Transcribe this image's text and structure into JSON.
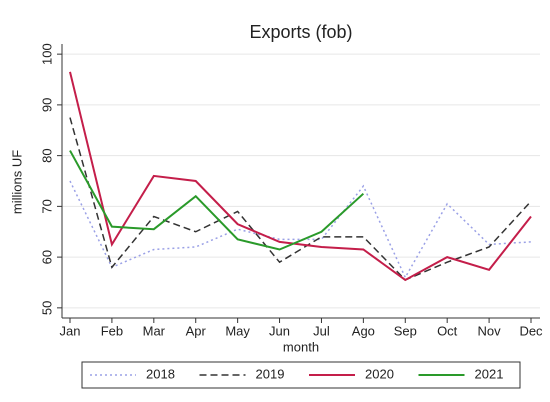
{
  "chart_data": {
    "type": "line",
    "title": "Exports (fob)",
    "x_label": "month",
    "y_label": "millions UF",
    "categories": [
      "Jan",
      "Feb",
      "Mar",
      "Apr",
      "May",
      "Jun",
      "Jul",
      "Ago",
      "Sep",
      "Oct",
      "Nov",
      "Dec"
    ],
    "ylim": [
      48,
      102
    ],
    "yticks": [
      50,
      60,
      70,
      80,
      90,
      100
    ],
    "grid": true,
    "legend": "bottom",
    "series": [
      {
        "name": "2018",
        "color": "#9aa0e6",
        "dash": "dotted",
        "values": [
          75,
          58,
          61.5,
          62,
          65.5,
          63.5,
          63.5,
          74,
          56,
          70.5,
          62.5,
          63
        ]
      },
      {
        "name": "2019",
        "color": "#333333",
        "dash": "dashed",
        "values": [
          87.5,
          58,
          68,
          65,
          69,
          59,
          64,
          64,
          55.5,
          59,
          62,
          71
        ]
      },
      {
        "name": "2020",
        "color": "#c41e4a",
        "dash": "solid",
        "values": [
          96.5,
          62.5,
          76,
          75,
          66.5,
          63,
          62,
          61.5,
          55.5,
          60,
          57.5,
          68
        ]
      },
      {
        "name": "2021",
        "color": "#2a9a2a",
        "dash": "solid",
        "values": [
          81,
          66,
          65.5,
          72,
          63.5,
          61.5,
          65,
          72.5,
          null,
          null,
          null,
          null
        ]
      }
    ]
  }
}
